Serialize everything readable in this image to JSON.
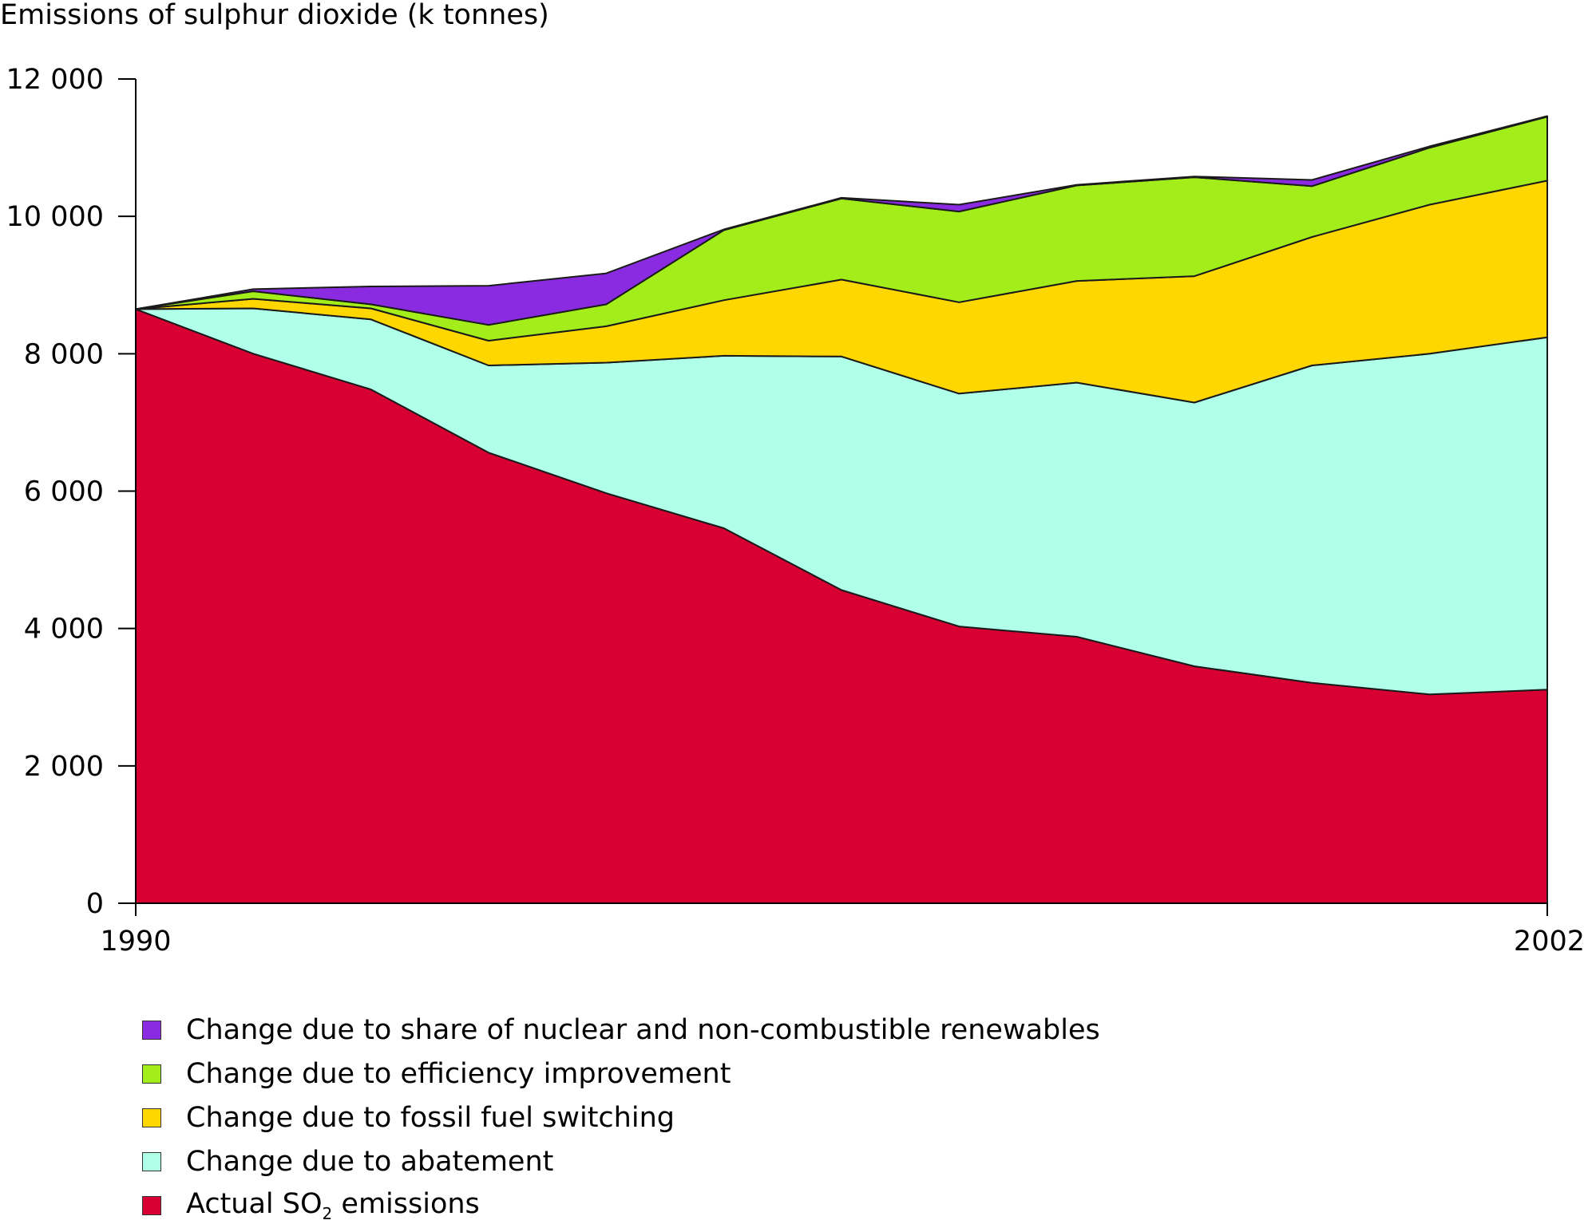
{
  "chart_data": {
    "type": "area",
    "stacked": true,
    "ylabel": "Emissions of sulphur dioxide (k tonnes)",
    "xlabel": "",
    "x": [
      1990,
      1991,
      1992,
      1993,
      1994,
      1995,
      1996,
      1997,
      1998,
      1999,
      2000,
      2001,
      2002
    ],
    "x_tick_labels": [
      "1990",
      "2002"
    ],
    "ylim": [
      0,
      12000
    ],
    "y_ticks": [
      0,
      2000,
      4000,
      6000,
      8000,
      10000,
      12000
    ],
    "y_tick_labels": [
      "0",
      "2 000",
      "4 000",
      "6 000",
      "8 000",
      "10 000",
      "12 000"
    ],
    "grid": false,
    "legend_position": "bottom",
    "series": [
      {
        "name": "Actual SO2 emissions",
        "legend_main": "Actual SO",
        "legend_sub": "2",
        "legend_tail": " emissions",
        "color": "#D80032",
        "values": [
          8650,
          8000,
          7480,
          6560,
          5970,
          5460,
          4560,
          4030,
          3880,
          3450,
          3210,
          3040,
          3110
        ]
      },
      {
        "name": "Change due to abatement",
        "color": "#B0FFE8",
        "values": [
          0,
          660,
          1020,
          1270,
          1900,
          2510,
          3400,
          3390,
          3700,
          3840,
          4620,
          4960,
          5130
        ]
      },
      {
        "name": "Change due to fossil fuel switching",
        "color": "#FFD700",
        "values": [
          0,
          140,
          160,
          360,
          530,
          810,
          1120,
          1330,
          1480,
          1840,
          1870,
          2170,
          2280
        ]
      },
      {
        "name": "Change due to efficiency improvement",
        "color": "#A3EE1A",
        "values": [
          0,
          110,
          60,
          230,
          320,
          1020,
          1180,
          1320,
          1390,
          1440,
          740,
          830,
          930
        ]
      },
      {
        "name": "Change due to share of nuclear and non-combustible renewables",
        "color": "#8A2BE2",
        "values": [
          0,
          30,
          260,
          570,
          450,
          10,
          10,
          100,
          10,
          10,
          90,
          20,
          10
        ]
      }
    ],
    "legend_order": [
      4,
      3,
      2,
      1,
      0
    ]
  }
}
